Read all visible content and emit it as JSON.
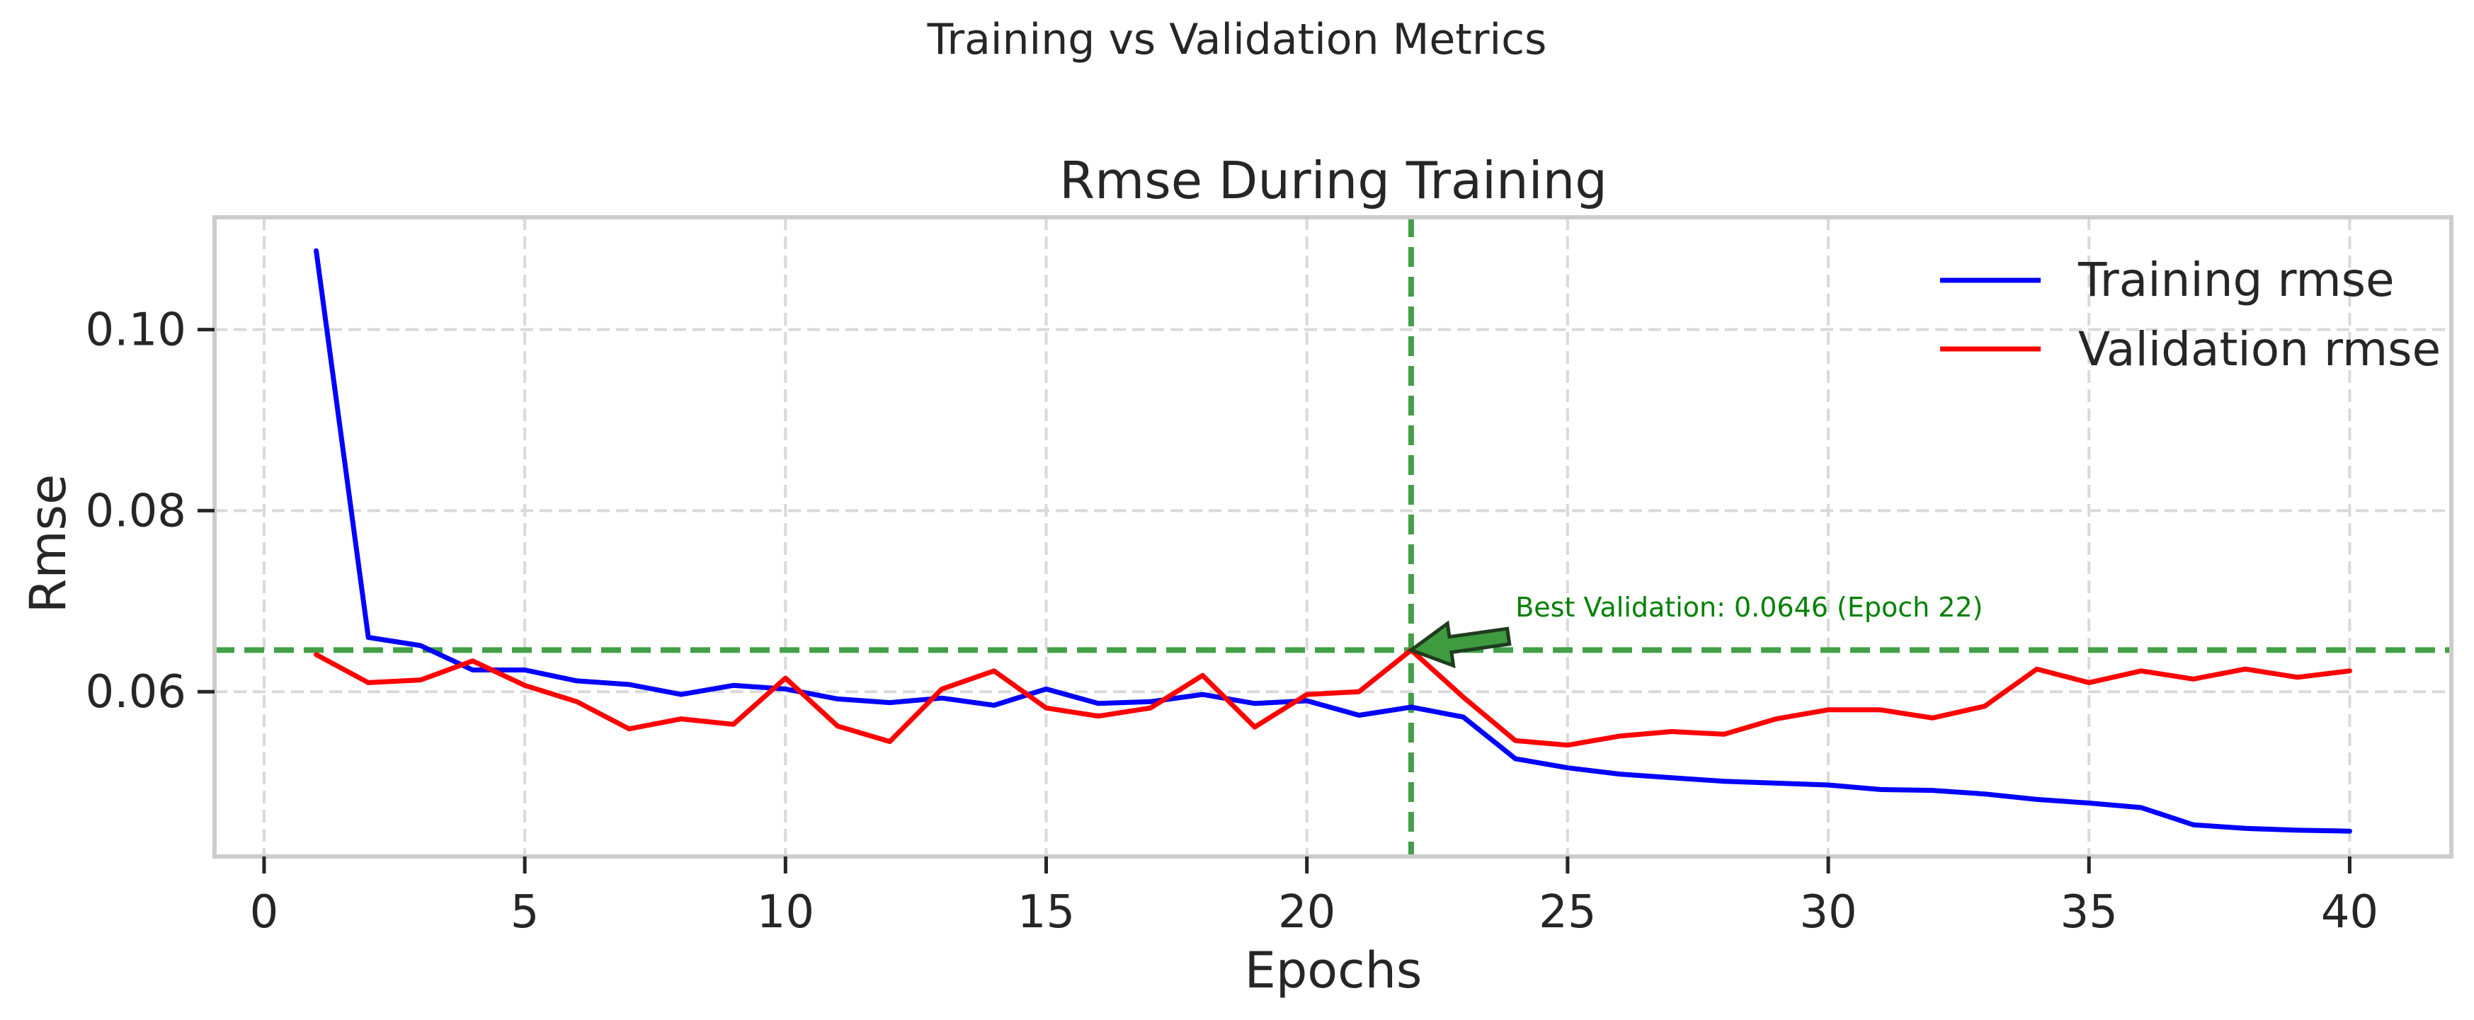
{
  "figure": {
    "suptitle": "Training vs Validation Metrics"
  },
  "chart_data": {
    "type": "line",
    "title": "Rmse During Training",
    "xlabel": "Epochs",
    "ylabel": "Rmse",
    "xlim": [
      -0.95,
      41.95
    ],
    "ylim": [
      0.0418,
      0.1124
    ],
    "xticks": [
      0,
      5,
      10,
      15,
      20,
      25,
      30,
      35,
      40
    ],
    "yticks": [
      0.06,
      0.08,
      0.1
    ],
    "ytick_labels": [
      "0.06",
      "0.08",
      "0.10"
    ],
    "grid": true,
    "legend_position": "top-right",
    "x": [
      1,
      2,
      3,
      4,
      5,
      6,
      7,
      8,
      9,
      10,
      11,
      12,
      13,
      14,
      15,
      16,
      17,
      18,
      19,
      20,
      21,
      22,
      23,
      24,
      25,
      26,
      27,
      28,
      29,
      30,
      31,
      32,
      33,
      34,
      35,
      36,
      37,
      38,
      39,
      40
    ],
    "series": [
      {
        "name": "Training rmse",
        "color": "#0000ff",
        "values": [
          0.1087,
          0.066,
          0.0651,
          0.0624,
          0.0624,
          0.0612,
          0.0608,
          0.0597,
          0.0607,
          0.0603,
          0.0592,
          0.0588,
          0.0593,
          0.0585,
          0.0603,
          0.0587,
          0.0589,
          0.0597,
          0.0587,
          0.059,
          0.0574,
          0.0583,
          0.0572,
          0.0526,
          0.0516,
          0.0509,
          0.0505,
          0.0501,
          0.0499,
          0.0497,
          0.0492,
          0.0491,
          0.0487,
          0.0481,
          0.0477,
          0.0472,
          0.0453,
          0.0449,
          0.0447,
          0.0446
        ]
      },
      {
        "name": "Validation rmse",
        "color": "#ff0000",
        "values": [
          0.0641,
          0.061,
          0.0613,
          0.0634,
          0.0607,
          0.0589,
          0.0559,
          0.057,
          0.0564,
          0.0615,
          0.0562,
          0.0545,
          0.0603,
          0.0623,
          0.0582,
          0.0573,
          0.0582,
          0.0618,
          0.0561,
          0.0597,
          0.06,
          0.0646,
          0.0594,
          0.0546,
          0.0541,
          0.0551,
          0.0556,
          0.0553,
          0.057,
          0.058,
          0.058,
          0.0571,
          0.0584,
          0.0625,
          0.061,
          0.0623,
          0.0614,
          0.0625,
          0.0616,
          0.0623
        ]
      }
    ],
    "reference_lines": {
      "best_epoch_x": 22,
      "best_value_y": 0.0646,
      "color": "#43a047"
    },
    "annotation": {
      "text": "Best Validation: 0.0646 (Epoch 22)",
      "point": [
        22,
        0.0646
      ],
      "text_anchor": [
        24,
        0.0683
      ],
      "arrow_color": "#3e9b3e"
    }
  }
}
